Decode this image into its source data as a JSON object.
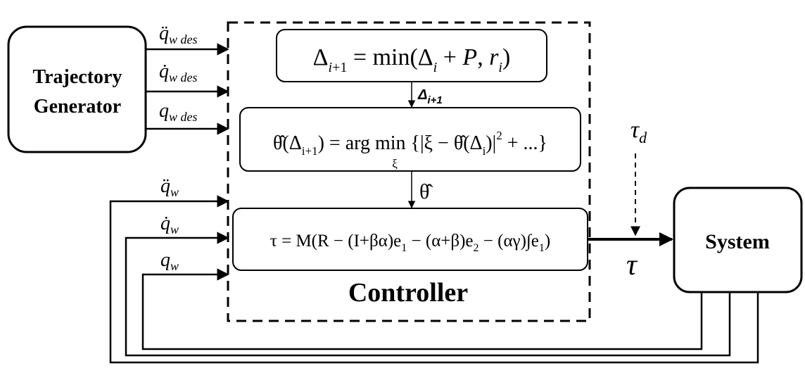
{
  "blocks": {
    "trajectory_generator": {
      "line1": "Trajectory",
      "line2": "Generator"
    },
    "system": {
      "label": "System"
    },
    "controller": {
      "label": "Controller"
    }
  },
  "equations": {
    "delta_update": "Δ_{i+1} = min(Δ_i + P, r_i)",
    "theta_estimate": "θ̂(Δ_{i+1}) = arg min_ξ {|ξ − θ̂(Δ_i)|² + ...}",
    "torque_law": "τ = M(R − (I+βα)e_1 − (α+β)e_2 − (αγ)∫e_1)"
  },
  "signals": {
    "delta_next": "Δ_{i+1}",
    "theta_hat": "θ̂",
    "tau": "τ",
    "tau_d": "τ_d",
    "qdd_des": "q̈_w des",
    "qd_des": "q̇_w des",
    "q_des": "q_w des",
    "qdd": "q̈_w",
    "qd": "q̇_w",
    "q": "q_w"
  }
}
